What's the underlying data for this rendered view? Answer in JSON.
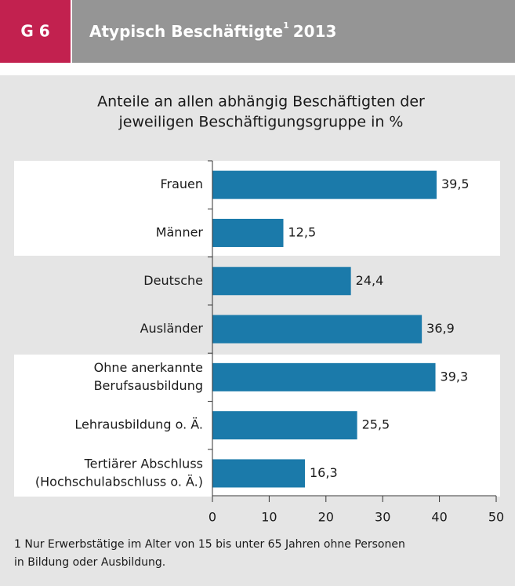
{
  "header": {
    "label": "G 6",
    "title": "Atypisch Beschäftigte",
    "title_sup": "1",
    "title_year": "2013"
  },
  "chart_data": {
    "type": "bar",
    "orientation": "horizontal",
    "subtitle": [
      "Anteile an allen abhängig Beschäftigten der",
      "jeweiligen Beschäftigungsgruppe in %"
    ],
    "categories": [
      [
        "Frauen"
      ],
      [
        "Männer"
      ],
      [
        "Deutsche"
      ],
      [
        "Ausländer"
      ],
      [
        "Ohne anerkannte",
        "Berufsausbildung"
      ],
      [
        "Lehrausbildung o. Ä."
      ],
      [
        "Tertiärer Abschluss",
        "(Hochschulabschluss o. Ä.)"
      ]
    ],
    "values": [
      39.5,
      12.5,
      24.4,
      36.9,
      39.3,
      25.5,
      16.3
    ],
    "value_labels": [
      "39,5",
      "12,5",
      "24,4",
      "36,9",
      "39,3",
      "25,5",
      "16,3"
    ],
    "color": "#1b7aaa",
    "xlim": [
      0,
      50
    ],
    "xticks": [
      0,
      10,
      20,
      30,
      40,
      50
    ],
    "grid": false
  },
  "footnote": [
    "1 Nur Erwerbstätige im Alter von 15 bis unter 65 Jahren ohne Personen",
    "in Bildung oder Ausbildung."
  ]
}
